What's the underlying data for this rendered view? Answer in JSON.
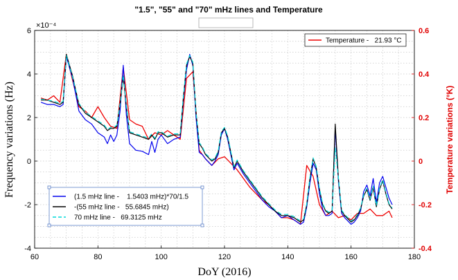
{
  "chart_data": {
    "type": "line",
    "title": "\"1.5\", \"55\" and \"70\" mHz lines and Temperature",
    "xlabel": "DoY (2016)",
    "ylabel": "Frequency variations (Hz)",
    "y_exponent_label": "×10⁻⁴",
    "y2label": "Temperature variations (°K)",
    "xlim": [
      60,
      180
    ],
    "ylim": [
      -4,
      6
    ],
    "y2lim": [
      -0.4,
      0.6
    ],
    "xticks": [
      60,
      80,
      100,
      120,
      140,
      160,
      180
    ],
    "yticks": [
      -4,
      -2,
      0,
      2,
      4,
      6
    ],
    "y2ticks": [
      -0.4,
      -0.2,
      0,
      0.2,
      0.4,
      0.6
    ],
    "grid": true,
    "legend_left_position": "bottom-left",
    "legend_right_position": "top-right",
    "series": [
      {
        "name": "(1.5 mHz line -    1.5403 mHz)*70/1.5",
        "color": "#0000ee",
        "dash": "solid",
        "axis": "left",
        "x": [
          62,
          64,
          66,
          68,
          69,
          70,
          72,
          74,
          76,
          78,
          80,
          82,
          83,
          84,
          85,
          86,
          87,
          88,
          89,
          90,
          92,
          94,
          96,
          97,
          98,
          99,
          100,
          102,
          104,
          106,
          107,
          108,
          109,
          110,
          111,
          112,
          113,
          114,
          116,
          117,
          118,
          119,
          120,
          121,
          122,
          123,
          124,
          126,
          128,
          130,
          132,
          134,
          136,
          138,
          140,
          142,
          143,
          144,
          145,
          146,
          147,
          148,
          149,
          150,
          151,
          152,
          153,
          154,
          155,
          156,
          157,
          158,
          160,
          161,
          162,
          163,
          164,
          165,
          166,
          167,
          168,
          169,
          170,
          171,
          172,
          173
        ],
        "values": [
          2.7,
          2.6,
          2.6,
          2.5,
          2.6,
          4.8,
          3.8,
          2.3,
          1.9,
          1.7,
          1.3,
          1.1,
          0.8,
          1.2,
          0.9,
          1.2,
          2.3,
          4.4,
          2.1,
          0.8,
          0.5,
          0.45,
          0.3,
          0.9,
          0.4,
          1.0,
          1.2,
          0.8,
          1.0,
          1.1,
          2.8,
          4.2,
          4.9,
          4.4,
          2.0,
          0.4,
          0.3,
          0.1,
          -0.2,
          0.0,
          0.3,
          1.2,
          1.5,
          1.0,
          0.3,
          -0.4,
          -0.1,
          -0.6,
          -1.0,
          -1.4,
          -1.8,
          -2.1,
          -2.3,
          -2.6,
          -2.5,
          -2.7,
          -2.8,
          -2.9,
          -2.8,
          -2.1,
          -1.0,
          -0.1,
          -0.4,
          -1.5,
          -2.2,
          -2.5,
          -2.5,
          -2.4,
          1.5,
          -0.9,
          -2.4,
          -2.6,
          -2.9,
          -2.8,
          -2.6,
          -2.3,
          -1.4,
          -1.1,
          -1.6,
          -0.8,
          -1.9,
          -1.0,
          -0.7,
          -1.2,
          -1.7,
          -2.0
        ]
      },
      {
        "name": "-(55 mHz line -   55.6845 mHz)",
        "color": "#000000",
        "dash": "solid",
        "axis": "left",
        "x": [
          62,
          64,
          66,
          68,
          69,
          70,
          72,
          74,
          76,
          78,
          80,
          82,
          83,
          84,
          85,
          86,
          87,
          88,
          89,
          90,
          92,
          94,
          96,
          97,
          98,
          99,
          100,
          102,
          104,
          106,
          107,
          108,
          109,
          110,
          111,
          112,
          113,
          114,
          116,
          117,
          118,
          119,
          120,
          121,
          122,
          123,
          124,
          126,
          128,
          130,
          132,
          134,
          136,
          138,
          140,
          142,
          143,
          144,
          145,
          146,
          147,
          148,
          149,
          150,
          151,
          152,
          153,
          154,
          155,
          156,
          157,
          158,
          160,
          161,
          162,
          163,
          164,
          165,
          166,
          167,
          168,
          169,
          170,
          171,
          172,
          173
        ],
        "values": [
          2.8,
          2.8,
          2.7,
          2.6,
          2.7,
          4.9,
          3.9,
          2.6,
          2.2,
          2.0,
          1.8,
          1.6,
          1.4,
          1.5,
          1.5,
          1.6,
          2.6,
          3.9,
          2.5,
          1.3,
          1.2,
          1.1,
          1.0,
          1.2,
          1.0,
          1.3,
          1.3,
          1.1,
          1.2,
          1.2,
          2.9,
          4.4,
          4.8,
          4.5,
          2.2,
          0.8,
          0.6,
          0.3,
          0.0,
          0.1,
          0.4,
          1.3,
          1.5,
          1.1,
          0.4,
          -0.3,
          0.0,
          -0.5,
          -0.9,
          -1.3,
          -1.7,
          -2.0,
          -2.3,
          -2.5,
          -2.5,
          -2.6,
          -2.7,
          -2.8,
          -2.7,
          -2.0,
          -0.8,
          0.1,
          -0.3,
          -1.3,
          -2.0,
          -2.3,
          -2.4,
          -2.3,
          1.7,
          -0.8,
          -2.3,
          -2.5,
          -2.8,
          -2.7,
          -2.5,
          -2.2,
          -1.6,
          -1.3,
          -1.8,
          -1.2,
          -2.1,
          -1.3,
          -0.9,
          -1.5,
          -2.0,
          -2.2
        ]
      },
      {
        "name": "70 mHz line -   69.3125 mHz",
        "color": "#00d8d8",
        "dash": "dashed",
        "axis": "left",
        "x": [
          62,
          64,
          66,
          68,
          69,
          70,
          72,
          74,
          76,
          78,
          80,
          82,
          83,
          84,
          85,
          86,
          87,
          88,
          89,
          90,
          92,
          94,
          96,
          97,
          98,
          99,
          100,
          102,
          104,
          106,
          107,
          108,
          109,
          110,
          111,
          112,
          113,
          114,
          116,
          117,
          118,
          119,
          120,
          121,
          122,
          123,
          124,
          126,
          128,
          130,
          132,
          134,
          136,
          138,
          140,
          142,
          143,
          144,
          145,
          146,
          147,
          148,
          149,
          150,
          151,
          152,
          153,
          154,
          155,
          156,
          157,
          158,
          160,
          161,
          162,
          163,
          164,
          165,
          166,
          167,
          168,
          169,
          170,
          171,
          172,
          173
        ],
        "values": [
          2.85,
          2.8,
          2.75,
          2.65,
          2.75,
          4.85,
          3.85,
          2.65,
          2.25,
          2.05,
          1.85,
          1.65,
          1.45,
          1.55,
          1.55,
          1.65,
          2.65,
          3.95,
          2.55,
          1.35,
          1.25,
          1.15,
          1.05,
          1.25,
          1.05,
          1.35,
          1.35,
          1.15,
          1.25,
          1.25,
          2.95,
          4.45,
          4.85,
          4.55,
          2.25,
          0.85,
          0.65,
          0.35,
          0.05,
          0.15,
          0.45,
          1.35,
          1.55,
          1.15,
          0.45,
          -0.25,
          0.05,
          -0.45,
          -0.85,
          -1.25,
          -1.65,
          -1.95,
          -2.25,
          -2.45,
          -2.45,
          -2.55,
          -2.65,
          -2.75,
          -2.65,
          -1.95,
          -0.75,
          0.15,
          -0.25,
          -1.25,
          -1.95,
          -2.25,
          -2.35,
          -2.25,
          0.6,
          -0.75,
          -2.25,
          -2.45,
          -2.75,
          -2.65,
          -2.45,
          -2.15,
          -1.55,
          -1.25,
          -1.75,
          -1.15,
          -2.05,
          -1.25,
          -0.85,
          -1.45,
          -1.95,
          -2.15
        ]
      },
      {
        "name": "Temperature -   21.93 °C",
        "color": "#ee0000",
        "dash": "solid",
        "axis": "right",
        "x": [
          62,
          64,
          66,
          68,
          70,
          72,
          74,
          76,
          78,
          80,
          82,
          84,
          86,
          88,
          90,
          92,
          94,
          96,
          98,
          100,
          102,
          104,
          106,
          108,
          110,
          112,
          114,
          116,
          118,
          120,
          122,
          124,
          126,
          128,
          130,
          132,
          134,
          136,
          138,
          140,
          142,
          144,
          146,
          148,
          150,
          152,
          154,
          156,
          158,
          160,
          162,
          164,
          166,
          168,
          170,
          172,
          173
        ],
        "values": [
          0.29,
          0.28,
          0.3,
          0.27,
          0.49,
          0.37,
          0.25,
          0.23,
          0.2,
          0.25,
          0.2,
          0.16,
          0.15,
          0.43,
          0.19,
          0.17,
          0.16,
          0.1,
          0.13,
          0.12,
          0.14,
          0.12,
          0.1,
          0.38,
          0.41,
          0.05,
          0.01,
          -0.02,
          0.01,
          0.02,
          -0.01,
          -0.04,
          -0.08,
          -0.12,
          -0.15,
          -0.18,
          -0.2,
          -0.23,
          -0.26,
          -0.26,
          -0.27,
          -0.29,
          -0.02,
          -0.07,
          -0.2,
          -0.25,
          -0.23,
          -0.26,
          -0.25,
          -0.27,
          -0.24,
          -0.24,
          -0.22,
          -0.25,
          -0.25,
          -0.23,
          -0.26
        ]
      }
    ]
  }
}
